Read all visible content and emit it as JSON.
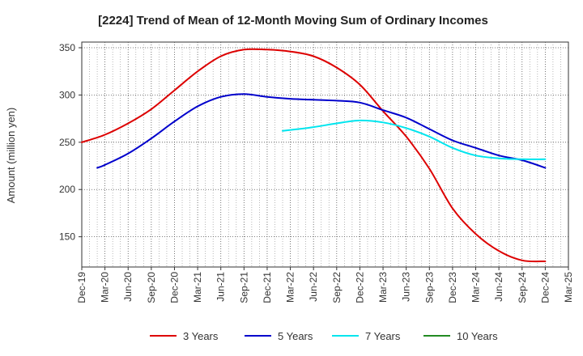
{
  "chart_data": {
    "type": "line",
    "title": "[2224]  Trend of Mean of 12-Month Moving Sum of Ordinary Incomes",
    "ylabel": "Amount (million yen)",
    "xlabel": "",
    "ylim": [
      118,
      356
    ],
    "yticks": [
      150,
      200,
      250,
      300,
      350
    ],
    "xticks": [
      "Dec-19",
      "Mar-20",
      "Jun-20",
      "Sep-20",
      "Dec-20",
      "Mar-21",
      "Jun-21",
      "Sep-21",
      "Dec-21",
      "Mar-22",
      "Jun-22",
      "Sep-22",
      "Dec-22",
      "Mar-23",
      "Jun-23",
      "Sep-23",
      "Dec-23",
      "Mar-24",
      "Jun-24",
      "Sep-24",
      "Dec-24",
      "Mar-25"
    ],
    "grid": true,
    "legend_position": "bottom",
    "series": [
      {
        "name": "3 Years",
        "color": "#dd0000",
        "points": [
          [
            0,
            250
          ],
          [
            1,
            258
          ],
          [
            2,
            270
          ],
          [
            3,
            285
          ],
          [
            4,
            305
          ],
          [
            5,
            325
          ],
          [
            6,
            341
          ],
          [
            7,
            348
          ],
          [
            8,
            348
          ],
          [
            9,
            346
          ],
          [
            10,
            341
          ],
          [
            11,
            329
          ],
          [
            12,
            311
          ],
          [
            13,
            283
          ],
          [
            14,
            256
          ],
          [
            15,
            222
          ],
          [
            16,
            180
          ],
          [
            17,
            153
          ],
          [
            18,
            135
          ],
          [
            19,
            125
          ],
          [
            20,
            124
          ]
        ]
      },
      {
        "name": "5 Years",
        "color": "#0000cc",
        "points": [
          [
            0.667,
            223
          ],
          [
            1,
            226
          ],
          [
            2,
            238
          ],
          [
            3,
            254
          ],
          [
            4,
            272
          ],
          [
            5,
            288
          ],
          [
            6,
            298
          ],
          [
            7,
            301
          ],
          [
            8,
            298
          ],
          [
            9,
            296
          ],
          [
            10,
            295
          ],
          [
            11,
            294
          ],
          [
            12,
            292
          ],
          [
            13,
            284
          ],
          [
            14,
            276
          ],
          [
            15,
            264
          ],
          [
            16,
            252
          ],
          [
            17,
            244
          ],
          [
            18,
            236
          ],
          [
            19,
            231
          ],
          [
            20,
            223
          ]
        ]
      },
      {
        "name": "7 Years",
        "color": "#00e5ee",
        "points": [
          [
            8.667,
            262
          ],
          [
            9,
            263
          ],
          [
            10,
            266
          ],
          [
            11,
            270
          ],
          [
            12,
            273
          ],
          [
            13,
            271
          ],
          [
            14,
            265
          ],
          [
            15,
            256
          ],
          [
            16,
            244
          ],
          [
            17,
            236
          ],
          [
            18,
            233
          ],
          [
            19,
            232
          ],
          [
            20,
            232
          ]
        ]
      },
      {
        "name": "10 Years",
        "color": "#228b22",
        "points": []
      }
    ]
  }
}
